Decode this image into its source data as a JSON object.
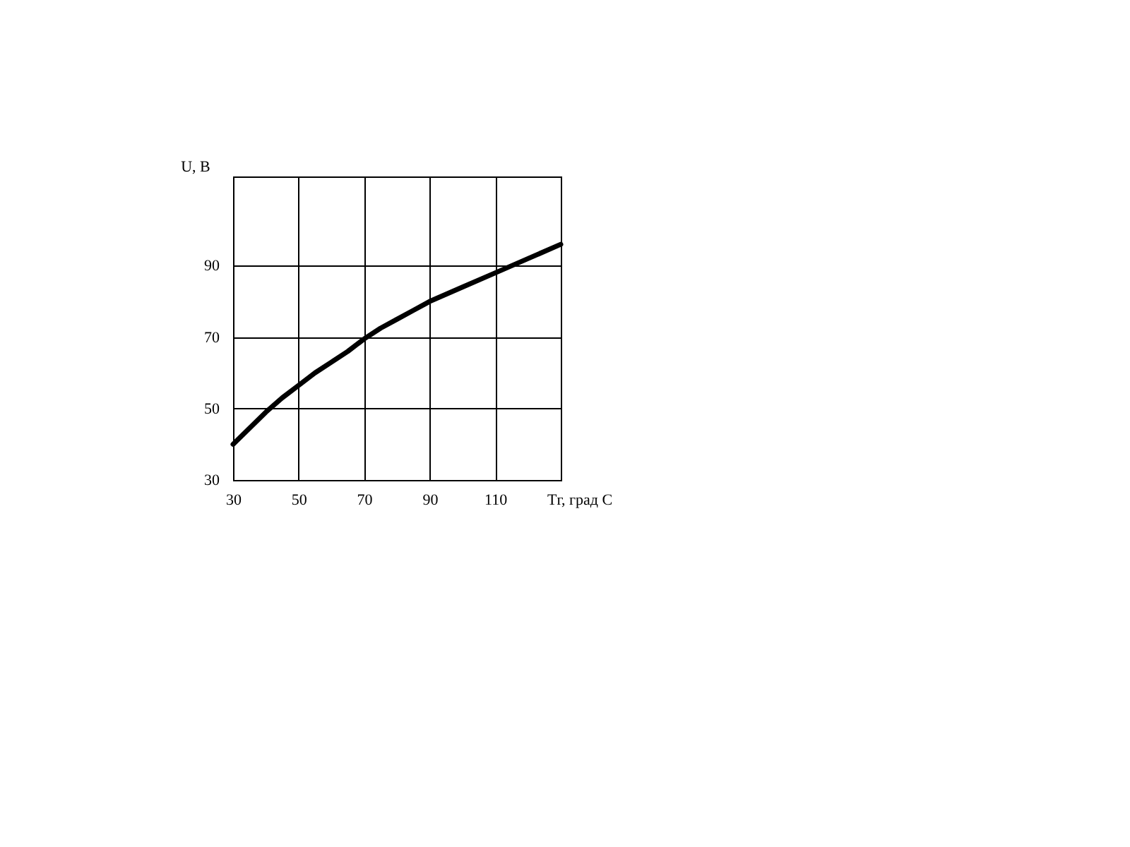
{
  "chart_data": {
    "type": "line",
    "xlabel": "Tг, град С",
    "ylabel": "U, В",
    "x": [
      30,
      35,
      40,
      45,
      50,
      55,
      60,
      65,
      70,
      75,
      80,
      85,
      90,
      100,
      110,
      120,
      130
    ],
    "series": [
      {
        "color": "#000000",
        "values": [
          40,
          44.5,
          49,
          53,
          56.5,
          60,
          63,
          66,
          69.5,
          72.5,
          75,
          77.5,
          80,
          84,
          88,
          92,
          96
        ]
      }
    ],
    "xlim": [
      30,
      130
    ],
    "xticks": [
      30,
      50,
      70,
      90,
      110
    ],
    "ylim": [
      30,
      115
    ],
    "yticks": [
      30,
      50,
      70,
      90
    ],
    "grid": true,
    "marker": "none",
    "line_style": "solid"
  }
}
